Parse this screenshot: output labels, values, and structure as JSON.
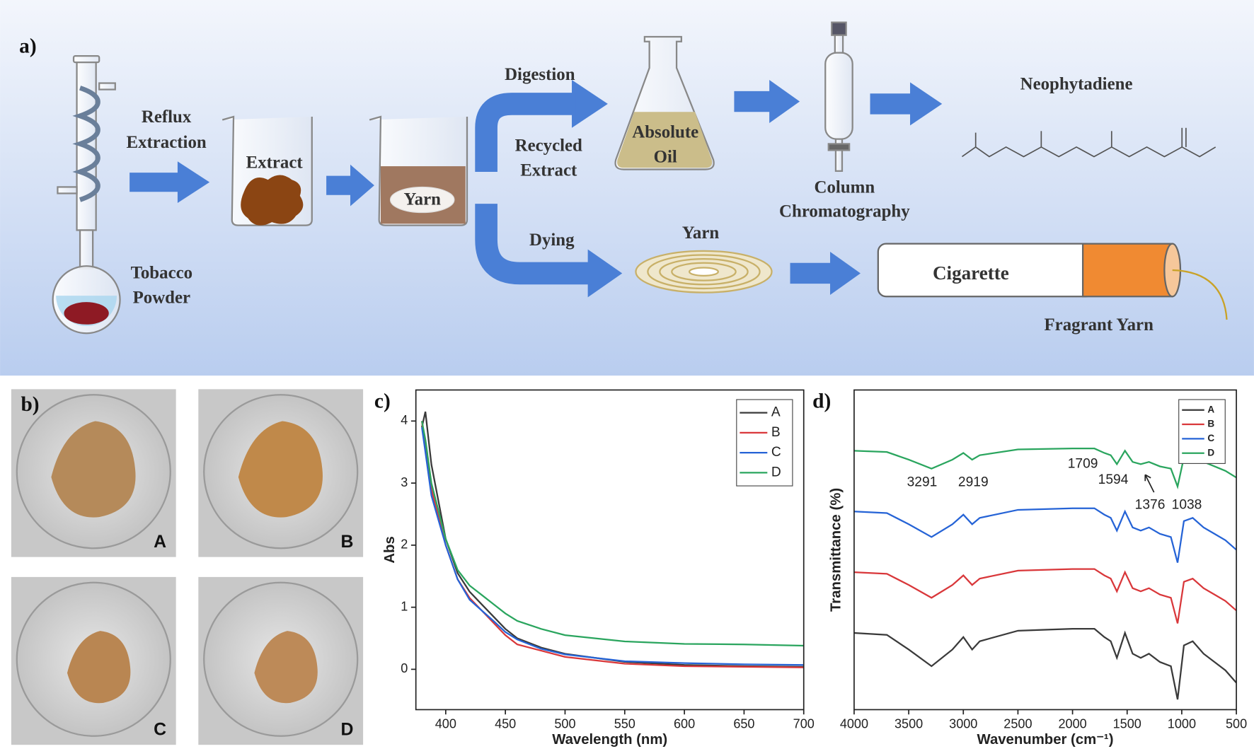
{
  "diagram": {
    "panel": "a)",
    "reflux": [
      "Reflux",
      "Extraction"
    ],
    "tobacco": [
      "Tobacco",
      "Powder"
    ],
    "extract": "Extract",
    "yarn_beaker": "Yarn",
    "digestion": "Digestion",
    "recycled": [
      "Recycled",
      "Extract"
    ],
    "absolute_oil": [
      "Absolute",
      "Oil"
    ],
    "column": [
      "Column",
      "Chromatography"
    ],
    "neophytadiene": "Neophytadiene",
    "dying": "Dying",
    "yarn": "Yarn",
    "cigarette": "Cigarette",
    "fragrant_yarn": "Fragrant Yarn"
  },
  "photos": {
    "panel": "b)",
    "labels": [
      "A",
      "B",
      "C",
      "D"
    ]
  },
  "chart_data": [
    {
      "type": "line",
      "panel": "c)",
      "xlabel": "Wavelength (nm)",
      "ylabel": "Abs",
      "x": [
        380,
        383,
        388,
        400,
        410,
        420,
        430,
        440,
        450,
        460,
        480,
        500,
        550,
        600,
        650,
        700
      ],
      "series": [
        {
          "name": "A",
          "color": "#3a3a3a",
          "values": [
            3.9,
            4.15,
            3.3,
            2.1,
            1.55,
            1.25,
            1.05,
            0.85,
            0.65,
            0.5,
            0.35,
            0.25,
            0.12,
            0.07,
            0.05,
            0.04
          ]
        },
        {
          "name": "B",
          "color": "#d9373a",
          "values": [
            4.0,
            3.6,
            2.9,
            2.0,
            1.45,
            1.15,
            0.95,
            0.75,
            0.55,
            0.4,
            0.3,
            0.2,
            0.09,
            0.05,
            0.04,
            0.03
          ]
        },
        {
          "name": "C",
          "color": "#2563d6",
          "values": [
            3.9,
            3.5,
            2.8,
            2.0,
            1.45,
            1.12,
            0.95,
            0.78,
            0.6,
            0.48,
            0.33,
            0.24,
            0.13,
            0.1,
            0.08,
            0.07
          ]
        },
        {
          "name": "D",
          "color": "#2aa55e",
          "values": [
            4.0,
            3.7,
            3.0,
            2.1,
            1.6,
            1.35,
            1.2,
            1.05,
            0.9,
            0.78,
            0.65,
            0.55,
            0.45,
            0.41,
            0.4,
            0.38
          ]
        }
      ],
      "xlim": [
        375,
        700
      ],
      "ylim": [
        -0.65,
        4.5
      ],
      "xticks": [
        400,
        450,
        500,
        550,
        600,
        650,
        700
      ],
      "yticks": [
        0,
        1,
        2,
        3,
        4
      ],
      "legend": "upper right"
    },
    {
      "type": "line",
      "panel": "d)",
      "xlabel": "Wavenumber (cm⁻¹)",
      "ylabel": "Transmittance (%)",
      "x": [
        4000,
        3700,
        3500,
        3291,
        3100,
        3000,
        2919,
        2850,
        2500,
        2000,
        1800,
        1709,
        1650,
        1594,
        1520,
        1450,
        1376,
        1300,
        1200,
        1100,
        1038,
        980,
        900,
        800,
        700,
        600,
        500
      ],
      "series": [
        {
          "name": "A",
          "color": "#3a3a3a",
          "values": [
            24,
            23.4,
            18.8,
            13.6,
            18.8,
            22.7,
            18.8,
            21.4,
            24.7,
            25.3,
            25.3,
            22.7,
            21.4,
            16.2,
            24,
            17.5,
            16.2,
            17.5,
            14.9,
            13.6,
            3.2,
            20.1,
            21.4,
            17.5,
            14.9,
            12.3,
            8.4
          ]
        },
        {
          "name": "B",
          "color": "#d9373a",
          "values": [
            43,
            42.5,
            39,
            35,
            39,
            42,
            39,
            41,
            43.5,
            44,
            44,
            42,
            41,
            37,
            43,
            38,
            37,
            38,
            36,
            35,
            27,
            40,
            41,
            38,
            36,
            34,
            31
          ]
        },
        {
          "name": "C",
          "color": "#2563d6",
          "values": [
            62,
            61.5,
            58,
            54,
            58,
            61,
            58,
            60,
            62.5,
            63,
            63,
            61,
            60,
            56,
            62,
            57,
            56,
            57,
            55,
            54,
            46,
            59,
            60,
            57,
            55,
            53,
            50
          ]
        },
        {
          "name": "D",
          "color": "#2aa55e",
          "values": [
            81,
            80.6,
            78.2,
            75.4,
            78.2,
            80.3,
            78.2,
            79.6,
            81.4,
            81.7,
            81.7,
            80.3,
            79.6,
            76.8,
            81,
            77.5,
            76.8,
            77.5,
            76.1,
            75.4,
            69.8,
            78.9,
            79.6,
            77.5,
            76.1,
            74.7,
            72.6
          ]
        }
      ],
      "xlim": [
        4000,
        500
      ],
      "ylim": [
        0,
        100
      ],
      "xticks": [
        4000,
        3500,
        3000,
        2500,
        2000,
        1500,
        1000,
        500
      ],
      "annotations": [
        "3291",
        "2919",
        "1709",
        "1594",
        "1376",
        "1038"
      ],
      "legend": "upper right"
    }
  ]
}
